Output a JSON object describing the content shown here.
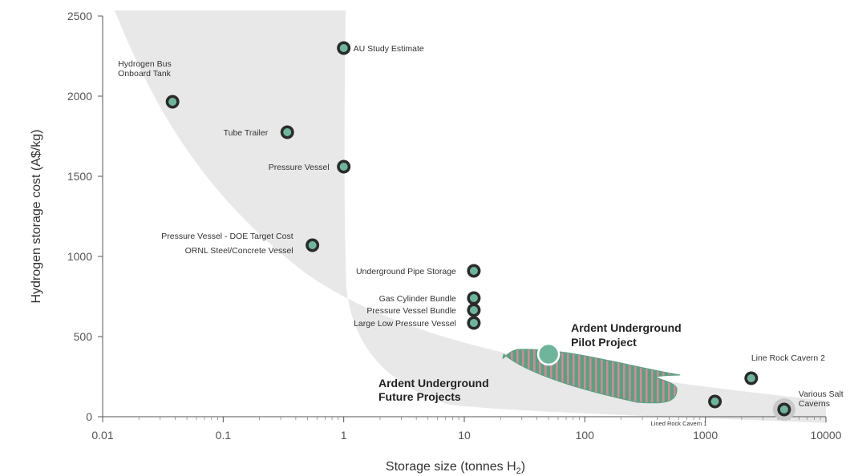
{
  "chart_data": {
    "type": "scatter",
    "title": "",
    "xlabel": "Storage size (tonnes H",
    "xlabel_sub": "2",
    "xlabel_end": ")",
    "ylabel": "Hydrogen storage cost (A$/kg)",
    "xscale": "log",
    "xlim": [
      0.01,
      10000
    ],
    "ylim": [
      0,
      2500
    ],
    "xticks": [
      0.01,
      0.1,
      1,
      10,
      100,
      1000,
      10000
    ],
    "xtick_labels": [
      "0.01",
      "0.1",
      "1",
      "10",
      "100",
      "1000",
      "10000"
    ],
    "yticks": [
      0,
      500,
      1000,
      1500,
      2000,
      2500
    ],
    "ytick_labels": [
      "0",
      "500",
      "1000",
      "1500",
      "2000",
      "2500"
    ],
    "grid": false,
    "colors": {
      "band": "#e8e8e8",
      "marker_fill": "#6fb59b",
      "marker_ring": "#2b2b2b",
      "hatch_a": "#5e9e83",
      "hatch_b": "#c98f95"
    },
    "points": [
      {
        "label": "AU Study Estimate",
        "x": 1,
        "y": 2300
      },
      {
        "label": "Hydrogen Bus",
        "label2": "Onboard Tank",
        "x": 0.038,
        "y": 1965
      },
      {
        "label": "Tube Trailer",
        "x": 0.34,
        "y": 1775
      },
      {
        "label": "Pressure Vessel",
        "x": 1,
        "y": 1560
      },
      {
        "label": "Pressure Vessel - DOE Target Cost",
        "label2": "ORNL Steel/Concrete Vessel",
        "x": 0.55,
        "y": 1070
      },
      {
        "label": "Underground Pipe Storage",
        "x": 12,
        "y": 910
      },
      {
        "label": "Gas Cylinder Bundle",
        "x": 12,
        "y": 740
      },
      {
        "label": "Pressure Vessel Bundle",
        "x": 12,
        "y": 665
      },
      {
        "label": "Large Low Pressure Vessel",
        "x": 12,
        "y": 585
      },
      {
        "label": "Line Rock Cavern 2",
        "x": 2400,
        "y": 240
      },
      {
        "label": "Lined Rock Cavern 1",
        "x": 1200,
        "y": 95
      },
      {
        "label": "Various Salt",
        "label2": "Caverns",
        "x": 4500,
        "y": 45
      }
    ],
    "highlight_point": {
      "label": "Ardent Underground",
      "label2": "Pilot Project",
      "x": 50,
      "y": 390
    },
    "future_region": {
      "label": "Ardent Underground",
      "label2": "Future Projects",
      "x_range": [
        20,
        580
      ],
      "y_range": [
        90,
        420
      ]
    }
  }
}
